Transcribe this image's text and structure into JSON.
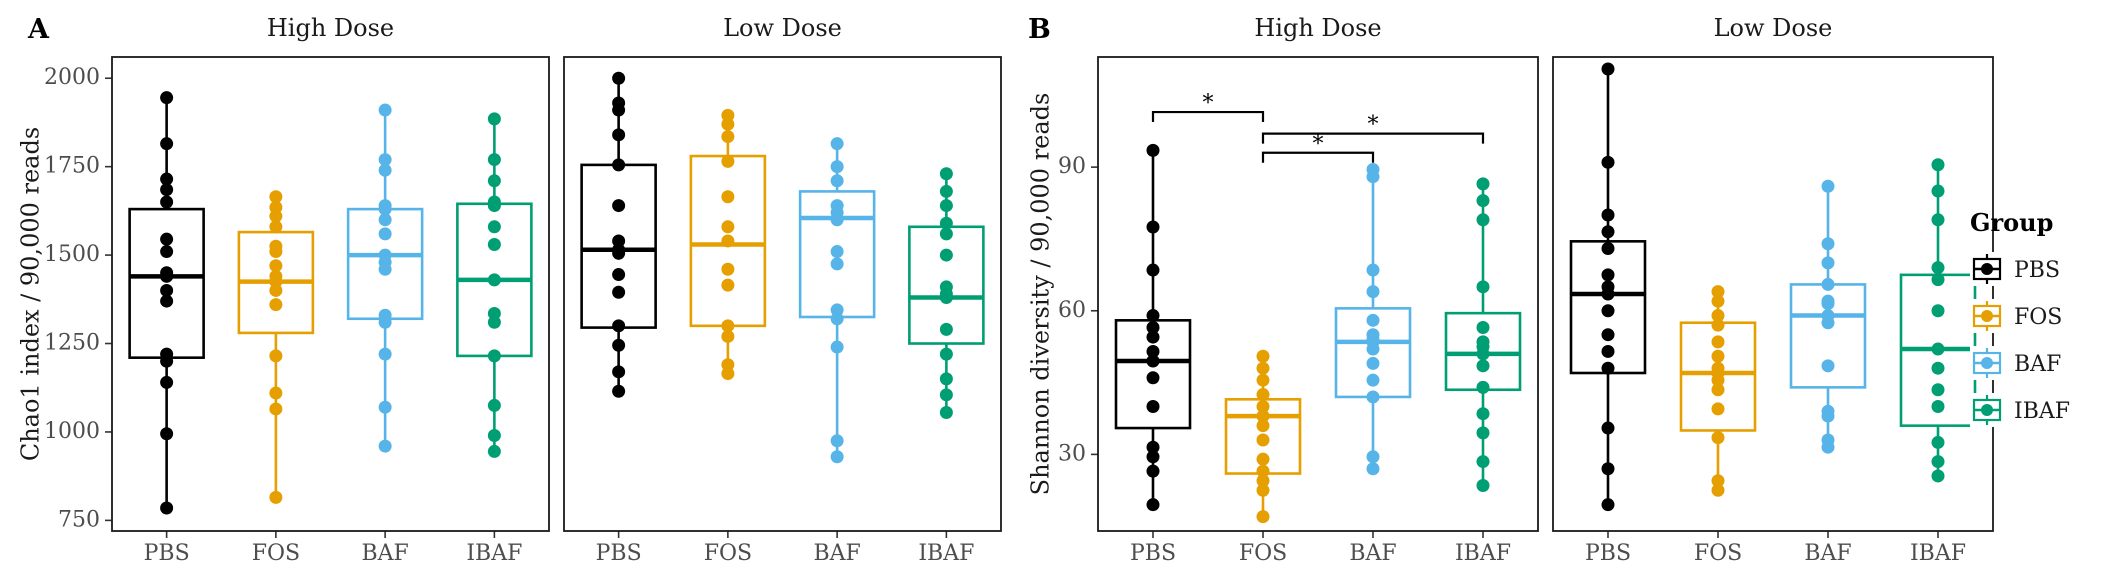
{
  "panel_labels": [
    "A",
    "B"
  ],
  "legend": {
    "title": "Group",
    "items": [
      {
        "label": "PBS",
        "color": "#000000"
      },
      {
        "label": "FOS",
        "color": "#E69F00"
      },
      {
        "label": "BAF",
        "color": "#56B4E9"
      },
      {
        "label": "IBAF",
        "color": "#009E73"
      }
    ]
  },
  "chart_data": [
    {
      "panel": "A",
      "type": "box",
      "ylabel": "Chao1 index / 90,000 reads",
      "ylim": [
        720,
        2060
      ],
      "yticks": [
        750,
        1000,
        1250,
        1500,
        1750,
        2000
      ],
      "ytick_labels": [
        "750",
        "1000",
        "1250",
        "1500",
        "1750",
        "2000"
      ],
      "categories": [
        "PBS",
        "FOS",
        "BAF",
        "IBAF"
      ],
      "facets": [
        {
          "title": "High Dose",
          "boxes": [
            {
              "group": "PBS",
              "q1": 1210,
              "median": 1440,
              "q3": 1630,
              "min": 785,
              "max": 1945,
              "points": [
                785,
                995,
                1140,
                1200,
                1220,
                1370,
                1400,
                1440,
                1450,
                1510,
                1545,
                1650,
                1685,
                1715,
                1815,
                1945
              ]
            },
            {
              "group": "FOS",
              "q1": 1280,
              "median": 1425,
              "q3": 1565,
              "min": 815,
              "max": 1665,
              "points": [
                815,
                1065,
                1110,
                1215,
                1360,
                1400,
                1425,
                1440,
                1470,
                1510,
                1525,
                1580,
                1610,
                1635,
                1665
              ]
            },
            {
              "group": "BAF",
              "q1": 1320,
              "median": 1500,
              "q3": 1630,
              "min": 960,
              "max": 1910,
              "points": [
                960,
                1070,
                1220,
                1310,
                1330,
                1460,
                1480,
                1500,
                1560,
                1600,
                1630,
                1640,
                1740,
                1770,
                1910
              ]
            },
            {
              "group": "IBAF",
              "q1": 1215,
              "median": 1430,
              "q3": 1645,
              "min": 945,
              "max": 1885,
              "points": [
                945,
                990,
                1075,
                1215,
                1310,
                1335,
                1430,
                1530,
                1580,
                1640,
                1650,
                1710,
                1770,
                1885
              ]
            }
          ]
        },
        {
          "title": "Low Dose",
          "boxes": [
            {
              "group": "PBS",
              "q1": 1295,
              "median": 1515,
              "q3": 1755,
              "min": 1115,
              "max": 2000,
              "points": [
                1115,
                1170,
                1245,
                1300,
                1395,
                1445,
                1505,
                1515,
                1540,
                1640,
                1755,
                1840,
                1910,
                1930,
                2000
              ]
            },
            {
              "group": "FOS",
              "q1": 1300,
              "median": 1530,
              "q3": 1780,
              "min": 1165,
              "max": 1895,
              "points": [
                1165,
                1190,
                1270,
                1300,
                1415,
                1460,
                1540,
                1580,
                1665,
                1765,
                1835,
                1870,
                1895
              ]
            },
            {
              "group": "BAF",
              "q1": 1325,
              "median": 1605,
              "q3": 1680,
              "min": 930,
              "max": 1815,
              "points": [
                930,
                975,
                1240,
                1320,
                1345,
                1475,
                1510,
                1600,
                1620,
                1640,
                1710,
                1750,
                1815
              ]
            },
            {
              "group": "IBAF",
              "q1": 1250,
              "median": 1380,
              "q3": 1580,
              "min": 1055,
              "max": 1730,
              "points": [
                1055,
                1105,
                1150,
                1220,
                1290,
                1380,
                1390,
                1410,
                1500,
                1560,
                1590,
                1640,
                1680,
                1730
              ]
            }
          ]
        }
      ]
    },
    {
      "panel": "B",
      "type": "box",
      "ylabel": "Shannon diversity / 90,000 reads",
      "ylim": [
        14,
        113
      ],
      "yticks": [
        30,
        60,
        90
      ],
      "ytick_labels": [
        "30",
        "60",
        "90"
      ],
      "categories": [
        "PBS",
        "FOS",
        "BAF",
        "IBAF"
      ],
      "facets": [
        {
          "title": "High Dose",
          "boxes": [
            {
              "group": "PBS",
              "q1": 35.5,
              "median": 49.5,
              "q3": 58,
              "min": 19.5,
              "max": 93.5,
              "points": [
                19.5,
                26.5,
                29.5,
                31.5,
                40,
                46,
                49.5,
                51.5,
                54.5,
                56.5,
                59,
                68.5,
                77.5,
                93.5
              ]
            },
            {
              "group": "FOS",
              "q1": 26,
              "median": 38,
              "q3": 41.5,
              "min": 17,
              "max": 50.5,
              "points": [
                17,
                22.5,
                24.5,
                26.5,
                29,
                33,
                36,
                38,
                40,
                42.5,
                45.5,
                48,
                50.5
              ]
            },
            {
              "group": "BAF",
              "q1": 42,
              "median": 53.5,
              "q3": 60.5,
              "min": 27,
              "max": 89.5,
              "points": [
                27,
                29.5,
                42,
                45.5,
                49,
                52,
                53.5,
                54,
                55,
                58,
                64,
                68.5,
                88,
                89.5
              ]
            },
            {
              "group": "IBAF",
              "q1": 43.5,
              "median": 51,
              "q3": 59.5,
              "min": 23.5,
              "max": 86.5,
              "points": [
                23.5,
                28.5,
                34.5,
                38.5,
                44,
                48.5,
                51,
                52.5,
                53.5,
                56.5,
                65,
                79,
                83,
                86.5
              ]
            }
          ]
        },
        {
          "title": "Low Dose",
          "boxes": [
            {
              "group": "PBS",
              "q1": 47,
              "median": 63.5,
              "q3": 74.5,
              "min": 19.5,
              "max": 110.5,
              "points": [
                19.5,
                27,
                35.5,
                48,
                51.5,
                55,
                60,
                63.5,
                65,
                67.5,
                73,
                76.5,
                80,
                91,
                110.5
              ]
            },
            {
              "group": "FOS",
              "q1": 35,
              "median": 47,
              "q3": 57.5,
              "min": 22.5,
              "max": 64,
              "points": [
                22.5,
                24.5,
                33.5,
                39.5,
                43.5,
                45.5,
                47,
                48,
                50.5,
                53.5,
                57,
                59,
                62,
                64
              ]
            },
            {
              "group": "BAF",
              "q1": 44,
              "median": 59,
              "q3": 65.5,
              "min": 31.5,
              "max": 86,
              "points": [
                31.5,
                33,
                38,
                39,
                48.5,
                57.5,
                59,
                61.5,
                62,
                65.5,
                70,
                74,
                86
              ]
            },
            {
              "group": "IBAF",
              "q1": 36,
              "median": 52,
              "q3": 67.5,
              "min": 25.5,
              "max": 90.5,
              "points": [
                25.5,
                28.5,
                32.5,
                40,
                43.5,
                48,
                52,
                60,
                66.5,
                69,
                79,
                85,
                90.5
              ]
            }
          ]
        }
      ],
      "significance": [
        {
          "facet": 0,
          "from": "PBS",
          "to": "FOS",
          "label": "*",
          "y": 101.5
        },
        {
          "facet": 0,
          "from": "FOS",
          "to": "IBAF",
          "label": "*",
          "y": 97
        },
        {
          "facet": 0,
          "from": "FOS",
          "to": "BAF",
          "label": "*",
          "y": 93
        }
      ]
    }
  ]
}
